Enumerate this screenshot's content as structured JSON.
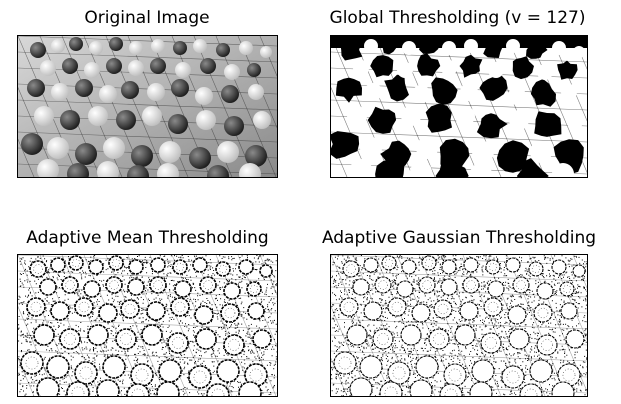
{
  "figure": {
    "panels": [
      {
        "title": "Original Image",
        "image": "grayscale photo of go board with black and white stones"
      },
      {
        "title": "Global Thresholding (v = 127)",
        "image": "binary threshold of go board photo"
      },
      {
        "title": "Adaptive Mean Thresholding",
        "image": "adaptive mean threshold result, speckled edges of stones"
      },
      {
        "title": "Adaptive Gaussian Thresholding",
        "image": "adaptive gaussian threshold result, speckled edges of stones"
      }
    ]
  },
  "colors": {
    "black": "#000000",
    "white": "#ffffff",
    "board_gray": "#a9a9a9",
    "stone_dark": "#2a2a2a",
    "stone_light": "#f2f2f2"
  }
}
